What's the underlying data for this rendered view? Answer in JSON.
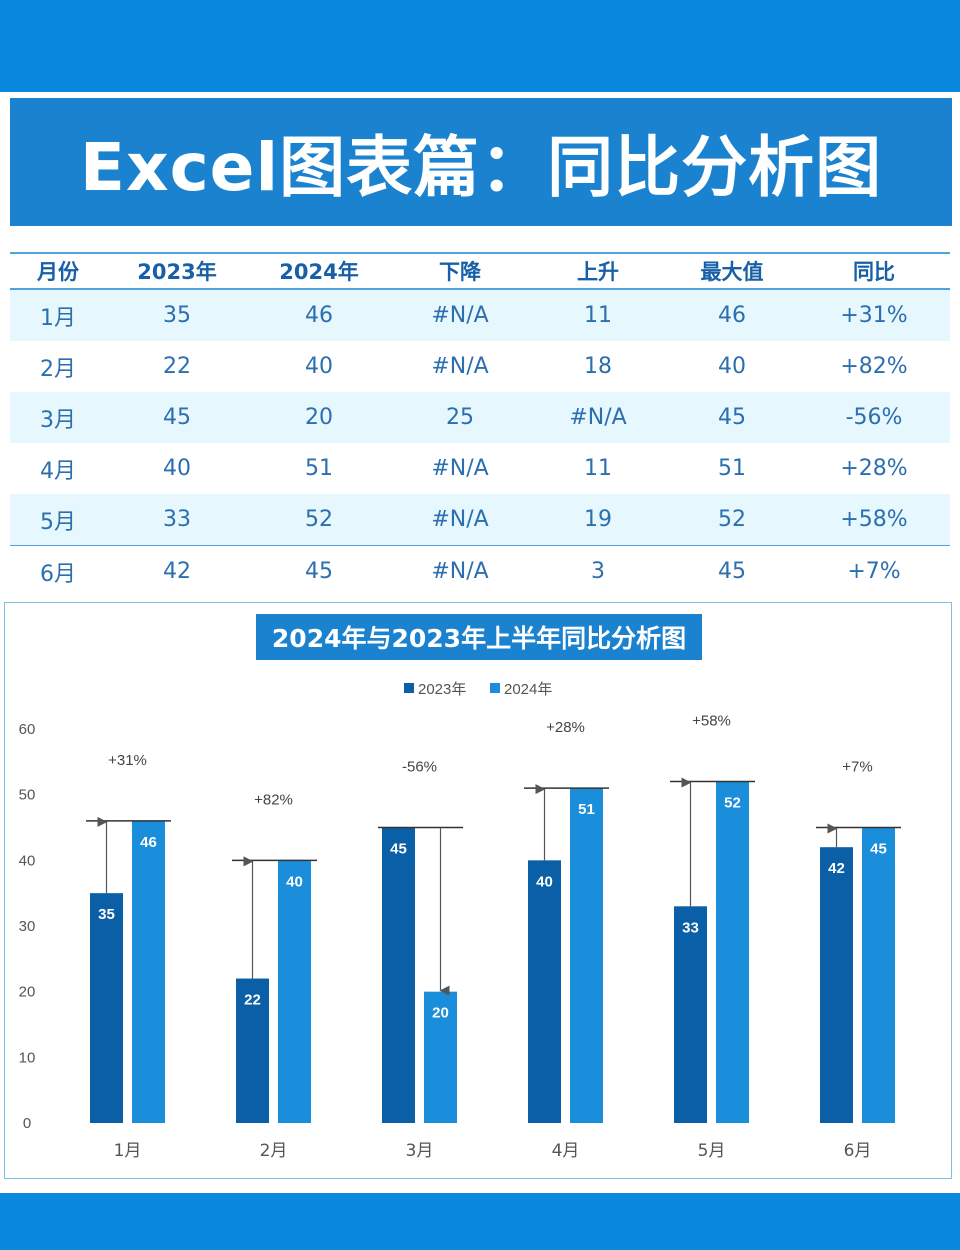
{
  "page": {
    "title": "Excel图表篇：同比分析图"
  },
  "table": {
    "headers": [
      "月份",
      "2023年",
      "2024年",
      "下降",
      "上升",
      "最大值",
      "同比"
    ],
    "rows": [
      [
        "1月",
        "35",
        "46",
        "#N/A",
        "11",
        "46",
        "+31%"
      ],
      [
        "2月",
        "22",
        "40",
        "#N/A",
        "18",
        "40",
        "+82%"
      ],
      [
        "3月",
        "45",
        "20",
        "25",
        "#N/A",
        "45",
        "-56%"
      ],
      [
        "4月",
        "40",
        "51",
        "#N/A",
        "11",
        "51",
        "+28%"
      ],
      [
        "5月",
        "33",
        "52",
        "#N/A",
        "19",
        "52",
        "+58%"
      ],
      [
        "6月",
        "42",
        "45",
        "#N/A",
        "3",
        "45",
        "+7%"
      ]
    ]
  },
  "colors": {
    "band": "#0a88de",
    "series_2023": "#0a5fa6",
    "series_2024": "#1a8ddb",
    "text_blue": "#2b6fb0",
    "arrow": "#555555"
  },
  "chart_data": {
    "type": "bar",
    "title": "2024年与2023年上半年同比分析图",
    "categories": [
      "1月",
      "2月",
      "3月",
      "4月",
      "5月",
      "6月"
    ],
    "series": [
      {
        "name": "2023年",
        "values": [
          35,
          22,
          45,
          40,
          33,
          42
        ]
      },
      {
        "name": "2024年",
        "values": [
          46,
          40,
          20,
          51,
          52,
          45
        ]
      }
    ],
    "max_values": [
      46,
      40,
      45,
      51,
      52,
      45
    ],
    "annotations": [
      "+31%",
      "+82%",
      "-56%",
      "+28%",
      "+58%",
      "+7%"
    ],
    "ylim": [
      0,
      60
    ],
    "yticks": [
      "0",
      "10",
      "20",
      "30",
      "40",
      "50",
      "60"
    ],
    "legend_position": "top-center",
    "grid": false
  }
}
